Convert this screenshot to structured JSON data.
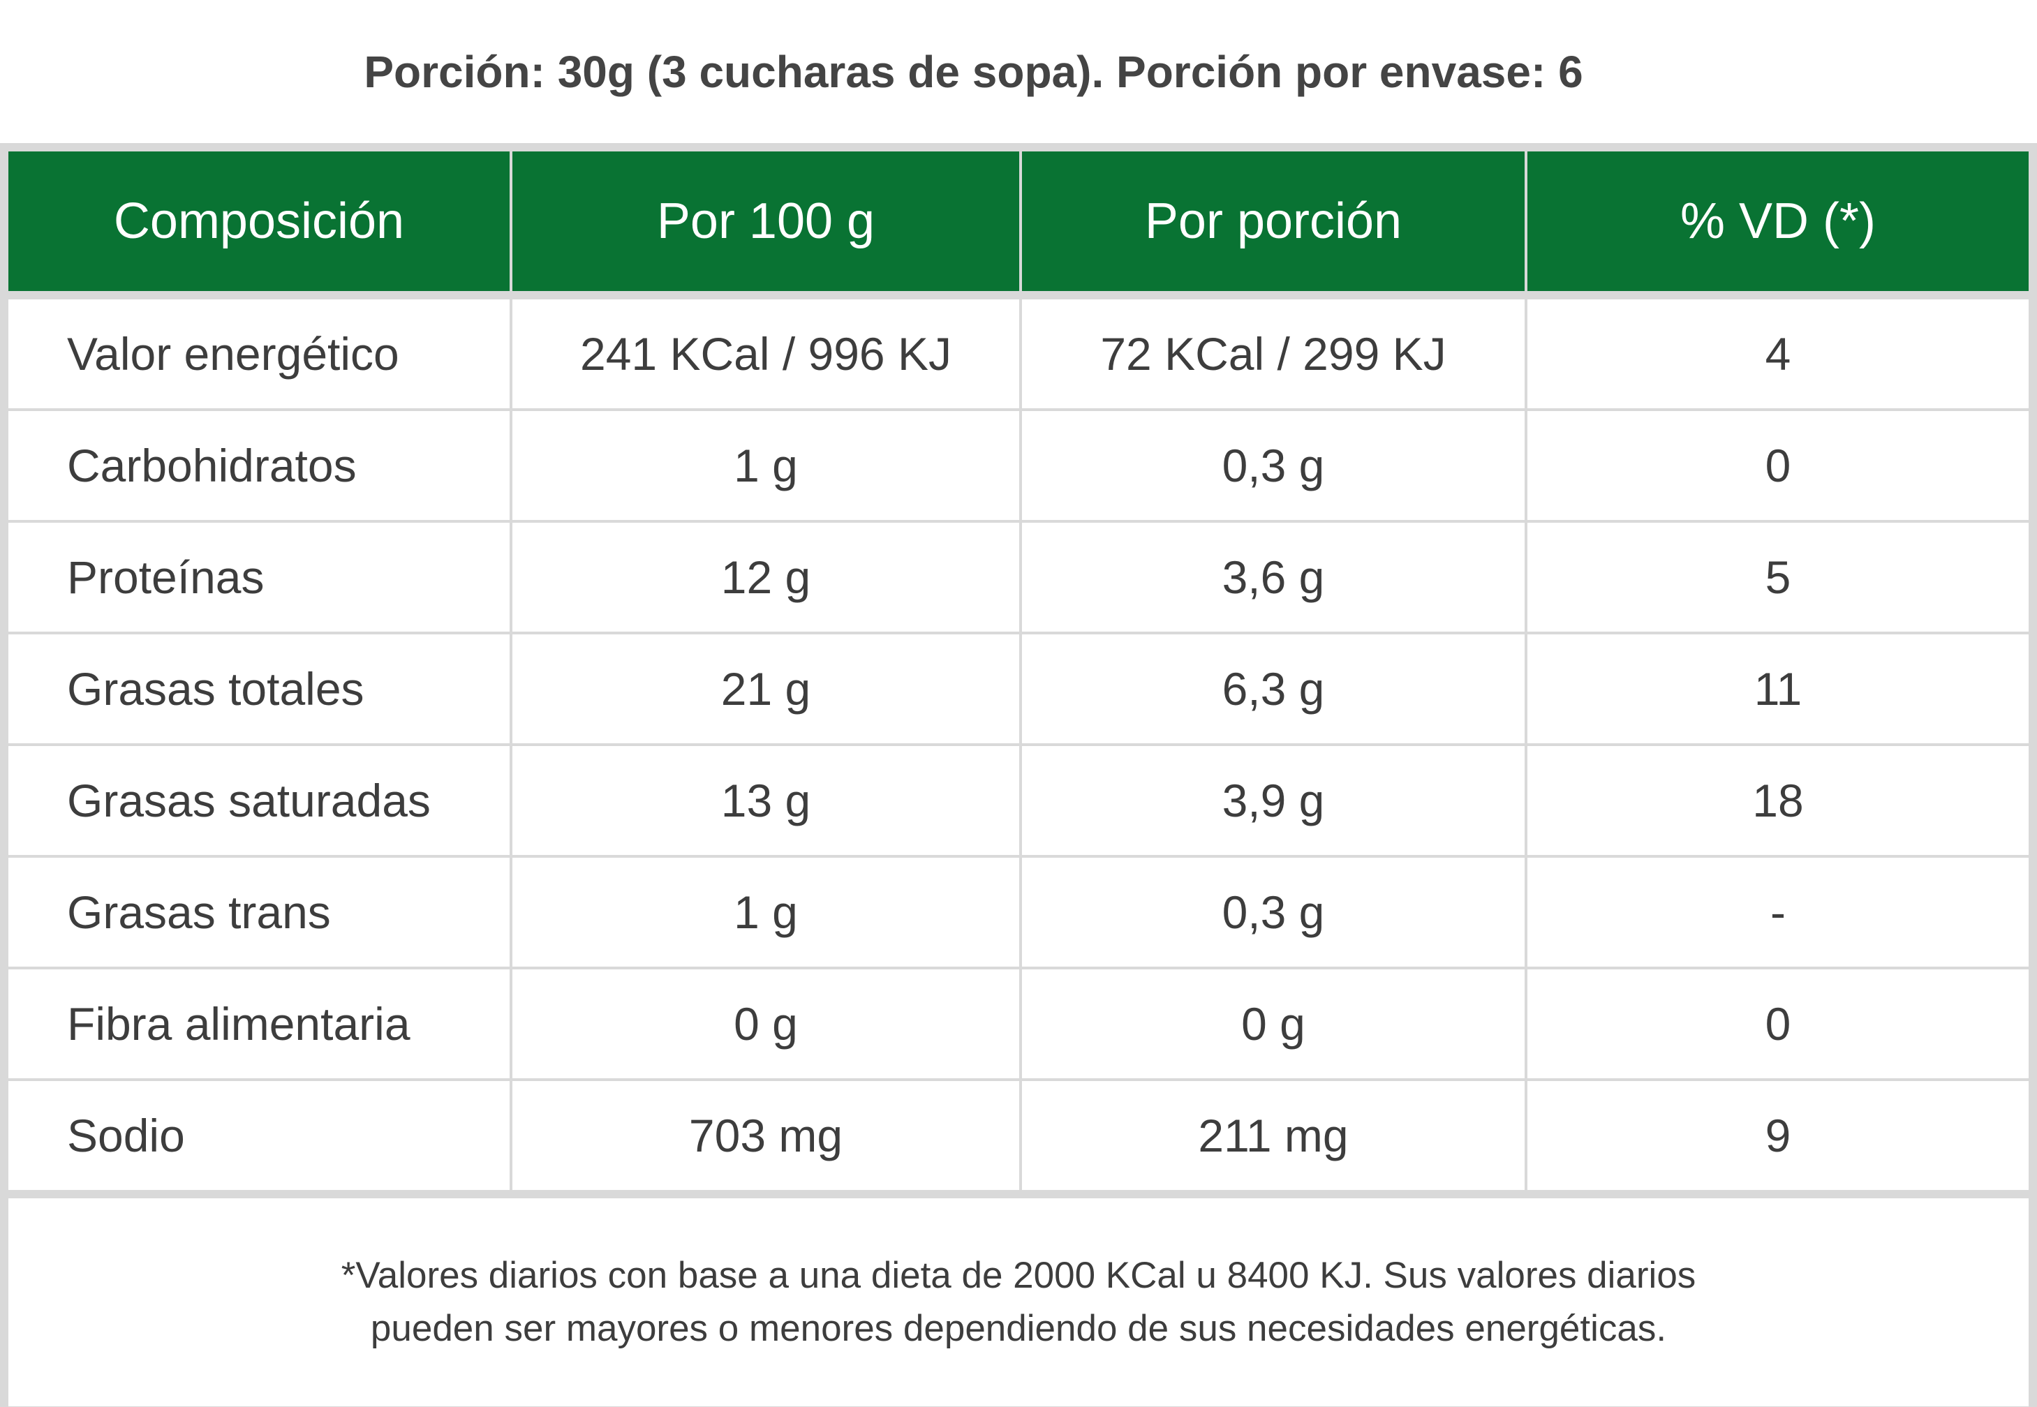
{
  "portion_title": "Porción: 30g (3 cucharas de sopa). Porción por envase: 6",
  "colors": {
    "header_green": "#097333",
    "grid_gray": "#d9d9d9",
    "text_dark": "#3d3d3d"
  },
  "table": {
    "headers": [
      "Composición",
      "Por 100 g",
      "Por porción",
      "% VD (*)"
    ],
    "rows": [
      [
        "Valor energético",
        "241 KCal / 996 KJ",
        "72 KCal / 299 KJ",
        "4"
      ],
      [
        "Carbohidratos",
        "1 g",
        "0,3 g",
        "0"
      ],
      [
        "Proteínas",
        "12 g",
        "3,6 g",
        "5"
      ],
      [
        "Grasas totales",
        "21 g",
        "6,3 g",
        "11"
      ],
      [
        "Grasas saturadas",
        "13 g",
        "3,9 g",
        "18"
      ],
      [
        "Grasas trans",
        "1 g",
        "0,3 g",
        "-"
      ],
      [
        "Fibra alimentaria",
        "0 g",
        "0 g",
        "0"
      ],
      [
        "Sodio",
        "703 mg",
        "211 mg",
        "9"
      ]
    ]
  },
  "footnote": {
    "line1": "*Valores diarios con base a una dieta de 2000 KCal u 8400 KJ. Sus valores diarios",
    "line2": "pueden ser mayores o menores dependiendo de sus necesidades energéticas."
  }
}
